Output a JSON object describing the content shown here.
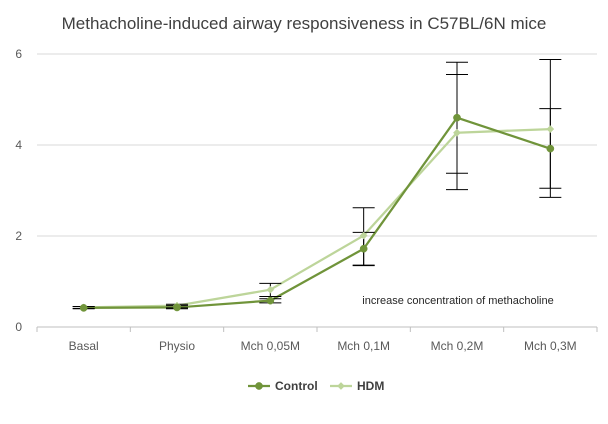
{
  "chart_data": {
    "type": "line",
    "title": "Methacholine-induced airway responsiveness in C57BL/6N mice",
    "xlabel": "",
    "ylabel": "",
    "categories": [
      "Basal",
      "Physio",
      "Mch 0,05M",
      "Mch 0,1M",
      "Mch 0,2M",
      "Mch 0,3M"
    ],
    "ylim": [
      0,
      6
    ],
    "yticks": [
      0,
      2,
      4,
      6
    ],
    "grid": true,
    "legend_position": "bottom",
    "annotation": "increase concentration of methacholine",
    "series": [
      {
        "name": "Control",
        "color": "#70943a",
        "marker": "circle",
        "values": [
          0.42,
          0.43,
          0.58,
          1.72,
          4.6,
          3.92
        ],
        "error_low": [
          0.4,
          0.4,
          0.53,
          1.35,
          3.02,
          2.85
        ],
        "error_high": [
          0.45,
          0.47,
          0.67,
          2.08,
          5.82,
          4.8
        ]
      },
      {
        "name": "HDM",
        "color": "#bdd59a",
        "marker": "diamond",
        "values": [
          0.43,
          0.47,
          0.82,
          2.01,
          4.27,
          4.35
        ],
        "error_low": [
          0.41,
          0.42,
          0.62,
          1.36,
          3.38,
          3.05
        ],
        "error_high": [
          0.45,
          0.5,
          0.96,
          2.62,
          5.55,
          5.88
        ]
      }
    ]
  }
}
